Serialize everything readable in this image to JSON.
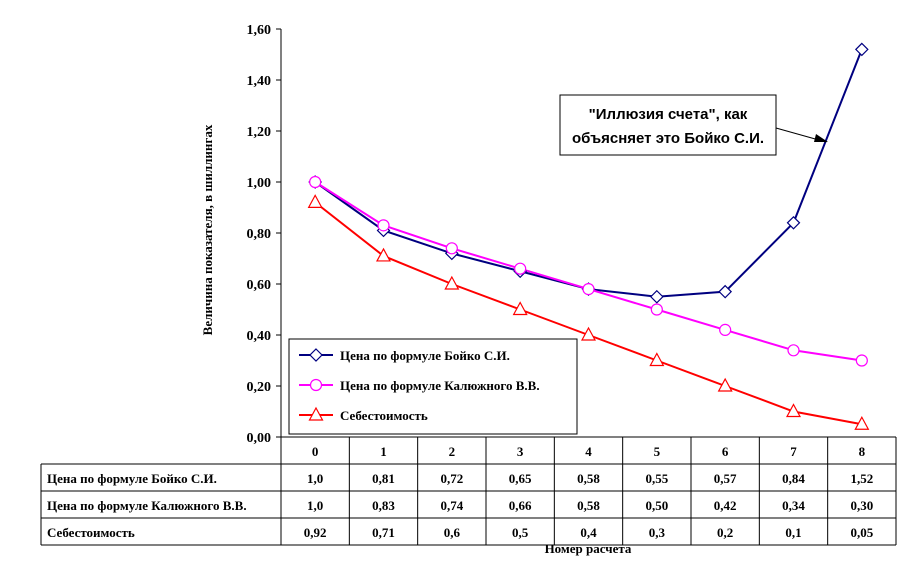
{
  "chart_data": {
    "type": "line",
    "xlabel": "Номер расчета",
    "ylabel": "Величина показателя, в шиллингах",
    "ylim": [
      0,
      1.6
    ],
    "yticks": [
      "0,00",
      "0,20",
      "0,40",
      "0,60",
      "0,80",
      "1,00",
      "1,20",
      "1,40",
      "1,60"
    ],
    "categories": [
      "0",
      "1",
      "2",
      "3",
      "4",
      "5",
      "6",
      "7",
      "8"
    ],
    "legend_position": "bottom-left",
    "series": [
      {
        "name": "Цена по формуле Бойко С.И.",
        "color": "#000080",
        "marker": "diamond",
        "values": [
          1.0,
          0.81,
          0.72,
          0.65,
          0.58,
          0.55,
          0.57,
          0.84,
          1.52
        ],
        "labels": [
          "1,0",
          "0,81",
          "0,72",
          "0,65",
          "0,58",
          "0,55",
          "0,57",
          "0,84",
          "1,52"
        ]
      },
      {
        "name": "Цена по формуле Калюжного В.В.",
        "color": "#ff00ff",
        "marker": "circle",
        "values": [
          1.0,
          0.83,
          0.74,
          0.66,
          0.58,
          0.5,
          0.42,
          0.34,
          0.3
        ],
        "labels": [
          "1,0",
          "0,83",
          "0,74",
          "0,66",
          "0,58",
          "0,50",
          "0,42",
          "0,34",
          "0,30"
        ]
      },
      {
        "name": "Себестоимость",
        "color": "#ff0000",
        "marker": "triangle",
        "values": [
          0.92,
          0.71,
          0.6,
          0.5,
          0.4,
          0.3,
          0.2,
          0.1,
          0.05
        ],
        "labels": [
          "0,92",
          "0,71",
          "0,6",
          "0,5",
          "0,4",
          "0,3",
          "0,2",
          "0,1",
          "0,05"
        ]
      }
    ],
    "annotation": {
      "lines": [
        "\"Иллюзия счета\", как",
        "объясняет это Бойко С.И."
      ],
      "points_to_series": 0,
      "points_to_index": 8
    }
  }
}
